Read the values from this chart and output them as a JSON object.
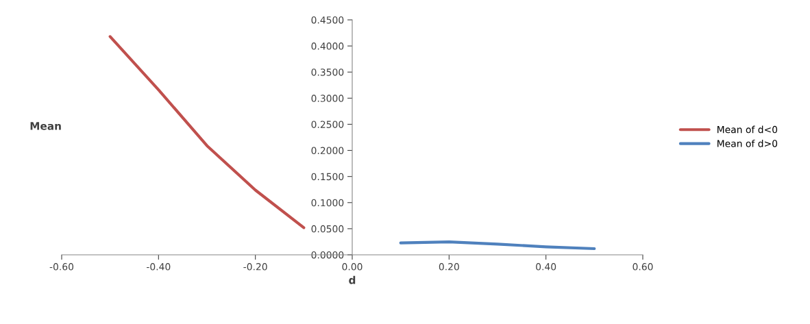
{
  "chart_data": {
    "type": "line",
    "xlabel": "d",
    "ylabel": "Mean",
    "series": [
      {
        "name": "Mean of d<0",
        "color": "#c0504d",
        "x": [
          -0.5,
          -0.4,
          -0.3,
          -0.2,
          -0.1
        ],
        "values": [
          0.418,
          0.316,
          0.209,
          0.124,
          0.052
        ]
      },
      {
        "name": "Mean of d>0",
        "color": "#4f81bd",
        "x": [
          0.1,
          0.2,
          0.3,
          0.4,
          0.5
        ],
        "values": [
          0.0227,
          0.0248,
          0.0205,
          0.0153,
          0.0118
        ]
      }
    ],
    "xlim": [
      -0.6,
      0.6
    ],
    "xticks": [
      {
        "value": -0.6,
        "label": "-0.60"
      },
      {
        "value": -0.4,
        "label": "-0.40"
      },
      {
        "value": -0.2,
        "label": "-0.20"
      },
      {
        "value": 0,
        "label": "0.00"
      },
      {
        "value": 0.2,
        "label": "0.20"
      },
      {
        "value": 0.4,
        "label": "0.40"
      },
      {
        "value": 0.6,
        "label": "0.60"
      }
    ],
    "ylim": [
      0,
      0.45
    ],
    "yticks": [
      {
        "value": 0,
        "label": "0.0000"
      },
      {
        "value": 0.05,
        "label": "0.0500"
      },
      {
        "value": 0.1,
        "label": "0.1000"
      },
      {
        "value": 0.15,
        "label": "0.1500"
      },
      {
        "value": 0.2,
        "label": "0.2000"
      },
      {
        "value": 0.25,
        "label": "0.2500"
      },
      {
        "value": 0.3,
        "label": "0.3000"
      },
      {
        "value": 0.35,
        "label": "0.3500"
      },
      {
        "value": 0.4,
        "label": "0.4000"
      },
      {
        "value": 0.45,
        "label": "0.4500"
      }
    ],
    "grid": false,
    "legend": "right",
    "marker": "none",
    "line_style": "solid"
  }
}
